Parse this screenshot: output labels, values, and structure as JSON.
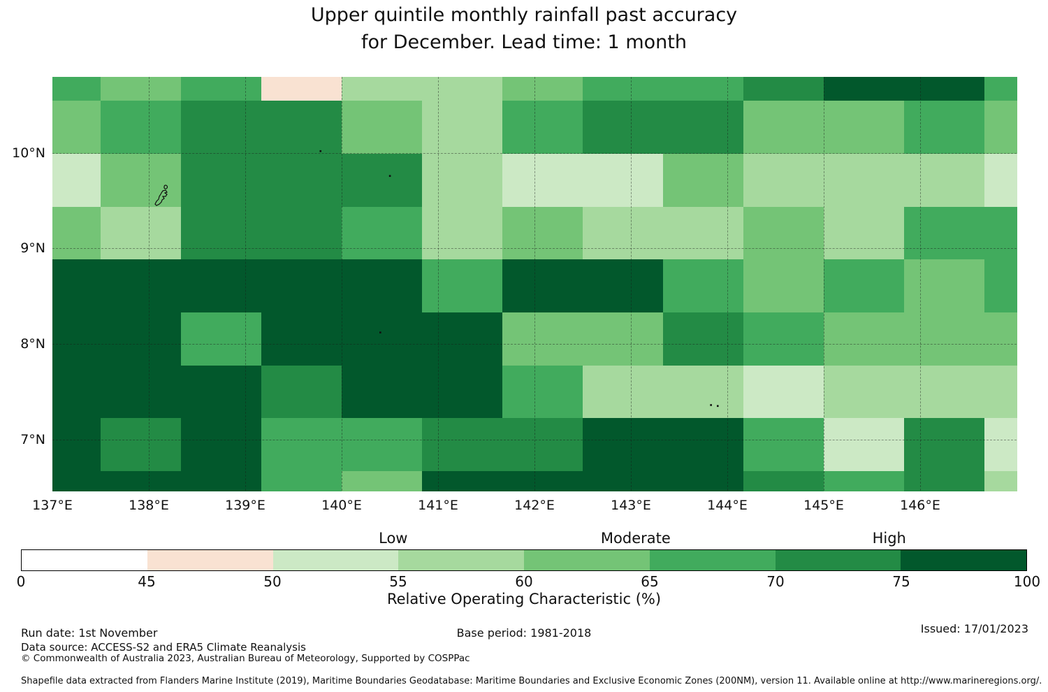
{
  "title": {
    "line1": "Upper quintile monthly rainfall past accuracy",
    "line2": "for December. Lead time: 1 month"
  },
  "footer": {
    "run_date": "Run date: 1st November",
    "base_period": "Base period: 1981-2018",
    "issued": "Issued: 17/01/2023",
    "data_source": "Data source: ACCESS-S2 and ERA5 Climate Reanalysis",
    "copyright": "© Commonwealth of Australia 2023, Australian Bureau of Meteorology, Supported by COSPPac",
    "shapefile": "Shapefile data extracted from Flanders Marine Institute (2019), Maritime Boundaries Geodatabase: Maritime Boundaries and Exclusive Economic Zones (200NM), version 11. Available online at http://www.marineregions.org/."
  },
  "colorbar": {
    "axis_label": "Relative Operating Characteristic (%)",
    "category_labels": [
      {
        "text": "Low",
        "pos_pct": 37.0
      },
      {
        "text": "Moderate",
        "pos_pct": 61.1
      },
      {
        "text": "High",
        "pos_pct": 86.3
      }
    ],
    "tick_labels": [
      "0",
      "45",
      "50",
      "55",
      "60",
      "65",
      "70",
      "75",
      "100"
    ],
    "segments": [
      {
        "range": "0-45",
        "color": "#ffffff"
      },
      {
        "range": "45-50",
        "color": "#f9e2d2"
      },
      {
        "range": "50-55",
        "color": "#cce9c5"
      },
      {
        "range": "55-60",
        "color": "#a6d99e"
      },
      {
        "range": "60-65",
        "color": "#74c476"
      },
      {
        "range": "65-70",
        "color": "#41ab5d"
      },
      {
        "range": "70-75",
        "color": "#238b45"
      },
      {
        "range": "75-100",
        "color": "#02582c"
      }
    ]
  },
  "chart_data": {
    "type": "heatmap",
    "title": "Upper quintile monthly rainfall past accuracy for December. Lead time: 1 month",
    "value_name": "Relative Operating Characteristic (%)",
    "legend": {
      "Low": "50-60",
      "Moderate": "60-70",
      "High": "70-100"
    },
    "axes": {
      "x_ticks": [
        {
          "label": "137°E",
          "lon": 137
        },
        {
          "label": "138°E",
          "lon": 138
        },
        {
          "label": "139°E",
          "lon": 139
        },
        {
          "label": "140°E",
          "lon": 140
        },
        {
          "label": "141°E",
          "lon": 141
        },
        {
          "label": "142°E",
          "lon": 142
        },
        {
          "label": "143°E",
          "lon": 143
        },
        {
          "label": "144°E",
          "lon": 144
        },
        {
          "label": "145°E",
          "lon": 145
        },
        {
          "label": "146°E",
          "lon": 146
        }
      ],
      "y_ticks": [
        {
          "label": "10°N",
          "lat": 10
        },
        {
          "label": "9°N",
          "lat": 9
        },
        {
          "label": "8°N",
          "lat": 8
        },
        {
          "label": "7°N",
          "lat": 7
        }
      ],
      "x_gridlines_lon": [
        138,
        139,
        140,
        141,
        142,
        143,
        144,
        145,
        146
      ],
      "y_gridlines_lat": [
        10,
        9,
        8,
        7
      ],
      "xlim": [
        137.0,
        147.0
      ],
      "ylim": [
        6.46,
        10.8
      ]
    },
    "grid": {
      "lon_edges_deg_e": [
        137.0,
        137.493,
        138.326,
        139.159,
        139.993,
        140.826,
        141.659,
        142.493,
        143.326,
        144.159,
        144.993,
        145.826,
        146.659,
        147.0
      ],
      "lat_edges_deg_n": [
        10.797,
        10.551,
        9.997,
        9.443,
        8.889,
        8.334,
        7.78,
        7.226,
        6.672,
        6.462
      ],
      "roc_bin_grid": [
        [
          "65-70",
          "60-65",
          "65-70",
          "45-50",
          "55-60",
          "55-60",
          "60-65",
          "65-70",
          "65-70",
          "70-75",
          "75-100",
          "75-100",
          "65-70"
        ],
        [
          "60-65",
          "65-70",
          "70-75",
          "70-75",
          "60-65",
          "55-60",
          "65-70",
          "70-75",
          "70-75",
          "60-65",
          "60-65",
          "65-70",
          "60-65"
        ],
        [
          "50-55",
          "60-65",
          "70-75",
          "70-75",
          "70-75",
          "55-60",
          "50-55",
          "50-55",
          "60-65",
          "55-60",
          "55-60",
          "55-60",
          "50-55"
        ],
        [
          "60-65",
          "55-60",
          "70-75",
          "70-75",
          "65-70",
          "55-60",
          "60-65",
          "55-60",
          "55-60",
          "60-65",
          "55-60",
          "65-70",
          "65-70"
        ],
        [
          "75-100",
          "75-100",
          "75-100",
          "75-100",
          "75-100",
          "65-70",
          "75-100",
          "75-100",
          "65-70",
          "60-65",
          "65-70",
          "60-65",
          "65-70"
        ],
        [
          "75-100",
          "75-100",
          "65-70",
          "75-100",
          "75-100",
          "75-100",
          "60-65",
          "60-65",
          "70-75",
          "65-70",
          "60-65",
          "60-65",
          "60-65"
        ],
        [
          "75-100",
          "75-100",
          "75-100",
          "70-75",
          "75-100",
          "75-100",
          "65-70",
          "55-60",
          "55-60",
          "50-55",
          "55-60",
          "55-60",
          "55-60"
        ],
        [
          "75-100",
          "70-75",
          "75-100",
          "65-70",
          "65-70",
          "70-75",
          "70-75",
          "75-100",
          "75-100",
          "65-70",
          "50-55",
          "70-75",
          "50-55"
        ],
        [
          "75-100",
          "75-100",
          "75-100",
          "65-70",
          "60-65",
          "75-100",
          "75-100",
          "75-100",
          "75-100",
          "70-75",
          "65-70",
          "70-75",
          "55-60"
        ]
      ]
    },
    "island_specks": [
      {
        "lon": 139.78,
        "lat": 10.02
      },
      {
        "lon": 140.5,
        "lat": 9.76
      },
      {
        "lon": 140.4,
        "lat": 8.12
      },
      {
        "lon": 143.83,
        "lat": 7.36
      },
      {
        "lon": 143.9,
        "lat": 7.35
      }
    ]
  }
}
